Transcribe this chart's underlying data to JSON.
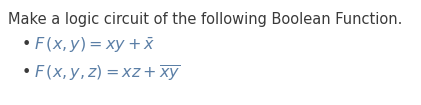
{
  "title": "Make a logic circuit of the following Boolean Function.",
  "line1": "$F\\,(x, y) = xy + \\bar{x}$",
  "line2": "$F\\,(x, y, z) = xz + \\overline{xy}$",
  "bg_color": "#ffffff",
  "title_color": "#3a3a3a",
  "math_color": "#5b7fa6",
  "title_fontsize": 10.5,
  "math_fontsize": 11.5,
  "bullet": "•",
  "bullet_color": "#3a3a3a"
}
